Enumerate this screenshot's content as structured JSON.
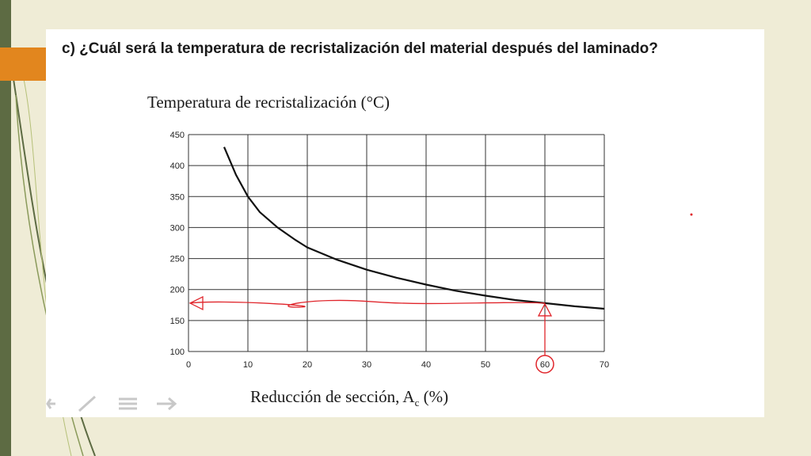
{
  "slide": {
    "question": "c) ¿Cuál será la temperatura de recristalización del material después del laminado?"
  },
  "colors": {
    "accent_bar": "#5d6b43",
    "accent_tab": "#e2861e",
    "curve": "#111111",
    "annotation": "#e0252b",
    "grid": "#333333"
  },
  "chart_data": {
    "type": "line",
    "title": "Temperatura de recristalización (°C)",
    "xlabel_main": "Reducción de sección, A",
    "xlabel_sub": "c",
    "xlabel_end": " (%)",
    "xlim": [
      0,
      70
    ],
    "ylim": [
      100,
      450
    ],
    "xticks": [
      0,
      10,
      20,
      30,
      40,
      50,
      60,
      70
    ],
    "yticks": [
      100,
      150,
      200,
      250,
      300,
      350,
      400,
      450
    ],
    "grid": true,
    "series": [
      {
        "x": [
          6,
          8,
          10,
          12,
          15,
          18,
          20,
          25,
          30,
          35,
          40,
          45,
          50,
          55,
          60,
          65,
          70
        ],
        "y": [
          430,
          385,
          350,
          325,
          300,
          280,
          268,
          248,
          232,
          219,
          208,
          198,
          190,
          183,
          178,
          173,
          169
        ]
      }
    ],
    "annotations": {
      "circled_tick": 60,
      "marker_x": 60,
      "marker_y": 178,
      "hline_y": 178,
      "arrow_to_x": 0
    }
  },
  "toolbar": {
    "icons": [
      "arrow-left-icon",
      "pen-icon",
      "menu-icon",
      "arrow-right-icon"
    ]
  }
}
